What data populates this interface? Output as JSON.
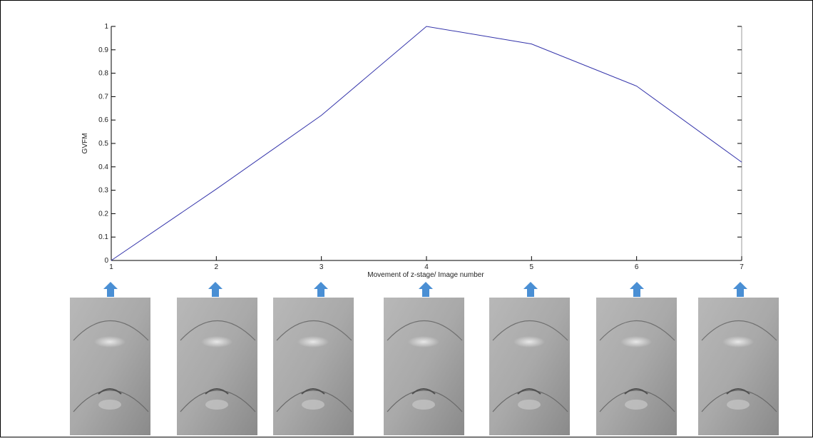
{
  "chart_data": {
    "type": "line",
    "x_label": "Movement of z-stage/ Image number",
    "y_label": "GVFM",
    "x": [
      1,
      2,
      3,
      4,
      5,
      6,
      7
    ],
    "series": [
      {
        "name": "GVFM",
        "color": "#3333aa",
        "values": [
          0,
          0.305,
          0.62,
          1.0,
          0.925,
          0.745,
          0.42
        ]
      }
    ],
    "xlim": [
      1,
      7
    ],
    "xticks": [
      1,
      2,
      3,
      4,
      5,
      6,
      7
    ],
    "ylim": [
      0,
      1
    ],
    "yticks": [
      0,
      0.1,
      0.2,
      0.3,
      0.4,
      0.5,
      0.6,
      0.7,
      0.8,
      0.9,
      1
    ],
    "grid": false
  }
}
